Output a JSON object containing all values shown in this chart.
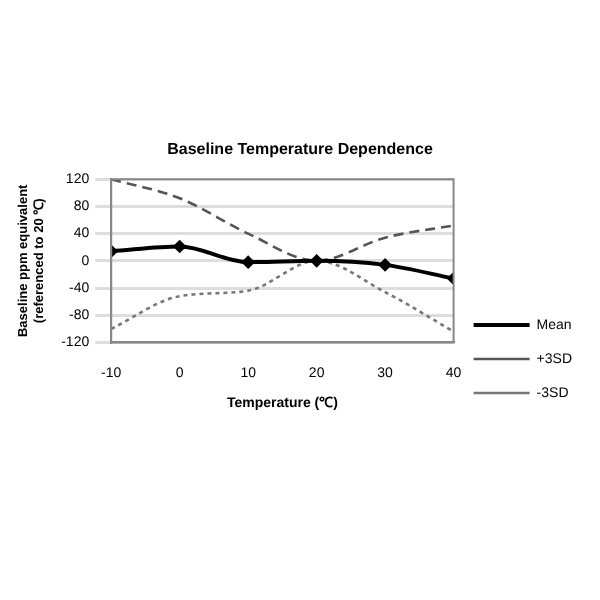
{
  "chart_data": {
    "type": "line",
    "title": "Baseline Temperature Dependence",
    "xlabel": "Temperature (℃)",
    "ylabel": "Baseline ppm equivalent\n(referenced to 20 ℃)",
    "x": [
      -10,
      0,
      10,
      20,
      30,
      40
    ],
    "xlim": [
      -10,
      40
    ],
    "xticks": [
      -10,
      0,
      10,
      20,
      30,
      40
    ],
    "ylim": [
      -120,
      120
    ],
    "yticks": [
      -120,
      -80,
      -40,
      0,
      40,
      80,
      120
    ],
    "grid": "y",
    "legend": "right",
    "series": [
      {
        "name": "Mean",
        "color": "#000000",
        "values": [
          14,
          21,
          -2,
          0,
          -6,
          -26
        ],
        "line_style": "solid",
        "marker": "diamond"
      },
      {
        "name": "+3SD",
        "color": "#555555",
        "values": [
          120,
          92,
          40,
          0,
          34,
          52
        ],
        "line_style": "dashed",
        "marker": "none"
      },
      {
        "name": "-3SD",
        "color": "#777777",
        "values": [
          -100,
          -52,
          -44,
          0,
          -46,
          -104
        ],
        "line_style": "dotted",
        "marker": "none"
      }
    ]
  }
}
